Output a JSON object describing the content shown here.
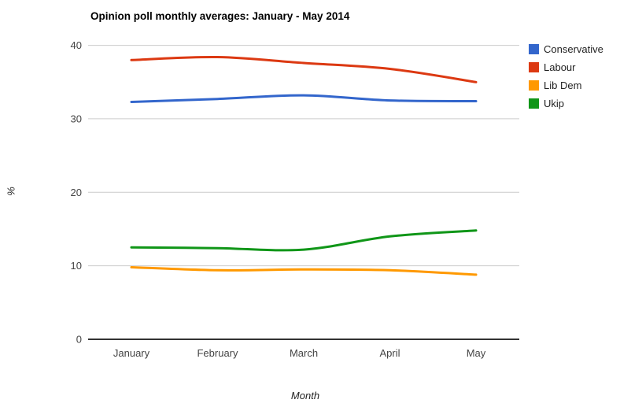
{
  "chart_data": {
    "type": "line",
    "title": "Opinion poll monthly averages: January - May 2014",
    "xlabel": "Month",
    "ylabel": "%",
    "categories": [
      "January",
      "February",
      "March",
      "April",
      "May"
    ],
    "series": [
      {
        "name": "Conservative",
        "color": "#3366CC",
        "values": [
          32.3,
          32.7,
          33.2,
          32.5,
          32.4
        ]
      },
      {
        "name": "Labour",
        "color": "#DC3912",
        "values": [
          38.0,
          38.4,
          37.6,
          36.8,
          35.0
        ]
      },
      {
        "name": "Lib Dem",
        "color": "#FF9900",
        "values": [
          9.8,
          9.4,
          9.5,
          9.4,
          8.8
        ]
      },
      {
        "name": "Ukip",
        "color": "#109618",
        "values": [
          12.5,
          12.4,
          12.2,
          14.0,
          14.8
        ]
      }
    ],
    "ylim": [
      0,
      40
    ],
    "yticks": [
      0,
      10,
      20,
      30,
      40
    ],
    "grid": true,
    "legend_position": "right",
    "curve": "smooth",
    "colors": {
      "gridline": "#CCCCCC",
      "baseline": "#333333",
      "tick_label": "#444444",
      "axis_title": "#222222",
      "legend_text": "#222222",
      "title_text": "#000000",
      "background": "#FFFFFF"
    }
  }
}
